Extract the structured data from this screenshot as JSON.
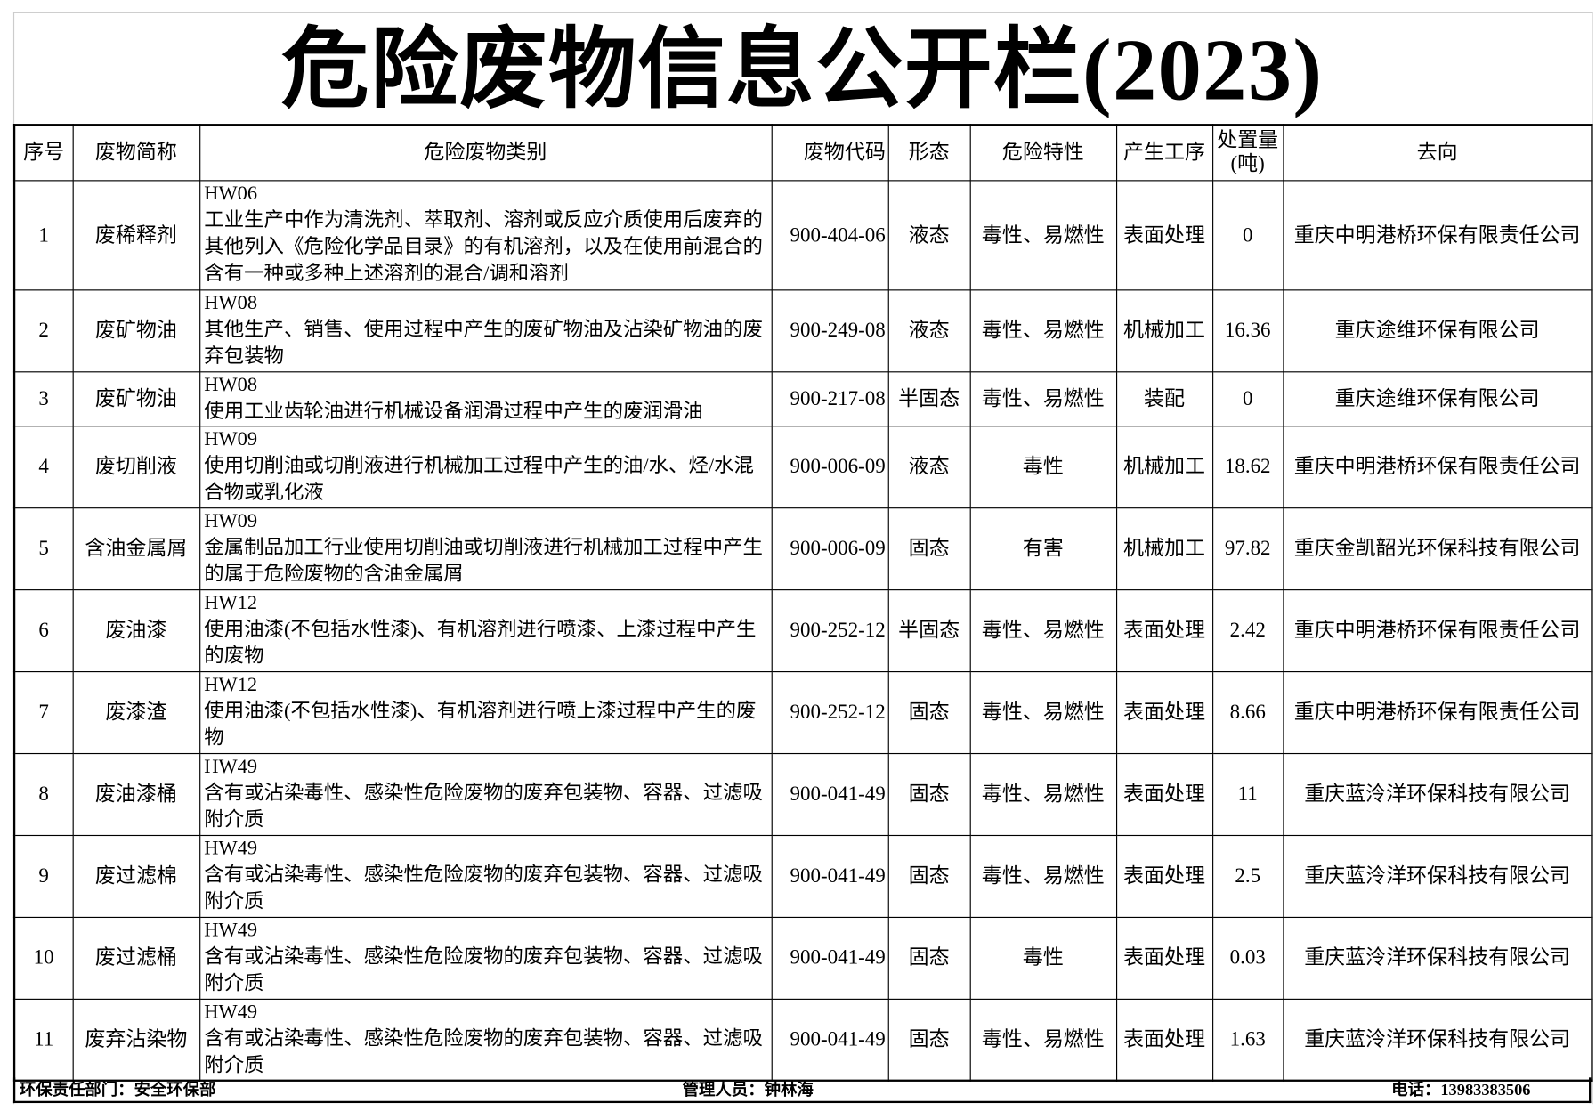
{
  "title": "危险废物信息公开栏(2023)",
  "headers": [
    "序号",
    "废物简称",
    "危险废物类别",
    "废物代码",
    "形态",
    "危险特性",
    "产生工序",
    "处置量(吨)",
    "去向"
  ],
  "rows": [
    {
      "no": "1",
      "name": "废稀释剂",
      "code": "HW06",
      "desc": "工业生产中作为清洗剂、萃取剂、溶剂或反应介质使用后废弃的其他列入《危险化学品目录》的有机溶剂，以及在使用前混合的含有一种或多种上述溶剂的混合/调和溶剂",
      "waste_code": "900-404-06",
      "form": "液态",
      "hazard": "毒性、易燃性",
      "process": "表面处理",
      "amount": "0",
      "dest": "重庆中明港桥环保有限责任公司"
    },
    {
      "no": "2",
      "name": "废矿物油",
      "code": "HW08",
      "desc": "其他生产、销售、使用过程中产生的废矿物油及沾染矿物油的废弃包装物",
      "waste_code": "900-249-08",
      "form": "液态",
      "hazard": "毒性、易燃性",
      "process": "机械加工",
      "amount": "16.36",
      "dest": "重庆途维环保有限公司"
    },
    {
      "no": "3",
      "name": "废矿物油",
      "code": "HW08",
      "desc": "使用工业齿轮油进行机械设备润滑过程中产生的废润滑油",
      "waste_code": "900-217-08",
      "form": "半固态",
      "hazard": "毒性、易燃性",
      "process": "装配",
      "amount": "0",
      "dest": "重庆途维环保有限公司"
    },
    {
      "no": "4",
      "name": "废切削液",
      "code": "HW09",
      "desc": "使用切削油或切削液进行机械加工过程中产生的油/水、烃/水混合物或乳化液",
      "waste_code": "900-006-09",
      "form": "液态",
      "hazard": "毒性",
      "process": "机械加工",
      "amount": "18.62",
      "dest": "重庆中明港桥环保有限责任公司"
    },
    {
      "no": "5",
      "name": "含油金属屑",
      "code": "HW09",
      "desc": "金属制品加工行业使用切削油或切削液进行机械加工过程中产生的属于危险废物的含油金属屑",
      "waste_code": "900-006-09",
      "form": "固态",
      "hazard": "有害",
      "process": "机械加工",
      "amount": "97.82",
      "dest": "重庆金凯韶光环保科技有限公司"
    },
    {
      "no": "6",
      "name": "废油漆",
      "code": "HW12",
      "desc": "使用油漆(不包括水性漆)、有机溶剂进行喷漆、上漆过程中产生的废物",
      "waste_code": "900-252-12",
      "form": "半固态",
      "hazard": "毒性、易燃性",
      "process": "表面处理",
      "amount": "2.42",
      "dest": "重庆中明港桥环保有限责任公司"
    },
    {
      "no": "7",
      "name": "废漆渣",
      "code": "HW12",
      "desc": "使用油漆(不包括水性漆)、有机溶剂进行喷上漆过程中产生的废物",
      "waste_code": "900-252-12",
      "form": "固态",
      "hazard": "毒性、易燃性",
      "process": "表面处理",
      "amount": "8.66",
      "dest": "重庆中明港桥环保有限责任公司"
    },
    {
      "no": "8",
      "name": "废油漆桶",
      "code": "HW49",
      "desc": "含有或沾染毒性、感染性危险废物的废弃包装物、容器、过滤吸附介质",
      "waste_code": "900-041-49",
      "form": "固态",
      "hazard": "毒性、易燃性",
      "process": "表面处理",
      "amount": "11",
      "dest": "重庆蓝泠洋环保科技有限公司"
    },
    {
      "no": "9",
      "name": "废过滤棉",
      "code": "HW49",
      "desc": "含有或沾染毒性、感染性危险废物的废弃包装物、容器、过滤吸附介质",
      "waste_code": "900-041-49",
      "form": "固态",
      "hazard": "毒性、易燃性",
      "process": "表面处理",
      "amount": "2.5",
      "dest": "重庆蓝泠洋环保科技有限公司"
    },
    {
      "no": "10",
      "name": "废过滤桶",
      "code": "HW49",
      "desc": "含有或沾染毒性、感染性危险废物的废弃包装物、容器、过滤吸附介质",
      "waste_code": "900-041-49",
      "form": "固态",
      "hazard": "毒性",
      "process": "表面处理",
      "amount": "0.03",
      "dest": "重庆蓝泠洋环保科技有限公司"
    },
    {
      "no": "11",
      "name": "废弃沾染物",
      "code": "HW49",
      "desc": "含有或沾染毒性、感染性危险废物的废弃包装物、容器、过滤吸附介质",
      "waste_code": "900-041-49",
      "form": "固态",
      "hazard": "毒性、易燃性",
      "process": "表面处理",
      "amount": "1.63",
      "dest": "重庆蓝泠洋环保科技有限公司"
    }
  ],
  "footer": {
    "department": "环保责任部门：安全环保部",
    "manager": "管理人员：钟林海",
    "phone": "电话：13983383506"
  }
}
